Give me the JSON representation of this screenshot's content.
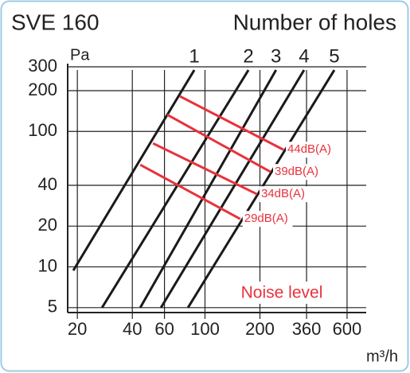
{
  "chart_data": {
    "type": "line",
    "title": "SVE 160",
    "subtitle": "Number of holes",
    "y_label": "Pa",
    "x_label": "m³/h",
    "annotation": "Noise level",
    "log_x": true,
    "log_y": true,
    "grid": true,
    "xlim": [
      17.7,
      764
    ],
    "ylim": [
      4.6,
      300
    ],
    "xticks": [
      20,
      40,
      60,
      100,
      200,
      360,
      600
    ],
    "yticks": [
      5,
      10,
      20,
      40,
      100,
      200,
      300
    ],
    "series": [
      {
        "name": "1",
        "color": "#1a1a1a",
        "x": [
          19.0,
          87.4
        ],
        "values": [
          9.4,
          284
        ]
      },
      {
        "name": "2",
        "color": "#1a1a1a",
        "x": [
          27.3,
          173
        ],
        "values": [
          5,
          284
        ]
      },
      {
        "name": "3",
        "color": "#1a1a1a",
        "x": [
          44.2,
          245
        ],
        "values": [
          5,
          284
        ]
      },
      {
        "name": "4",
        "color": "#1a1a1a",
        "x": [
          57.4,
          349
        ],
        "values": [
          5,
          284
        ]
      },
      {
        "name": "5",
        "color": "#1a1a1a",
        "x": [
          80.7,
          511
        ],
        "values": [
          5,
          284
        ]
      }
    ],
    "noise_lines": [
      {
        "name": "44dB(A)",
        "color": "#e8323c",
        "x": [
          73.0,
          269
        ],
        "values": [
          181.6,
          73.3
        ]
      },
      {
        "name": "39dB(A)",
        "color": "#e8323c",
        "x": [
          62.1,
          229
        ],
        "values": [
          133,
          50.2
        ]
      },
      {
        "name": "34dB(A)",
        "color": "#e8323c",
        "x": [
          51.9,
          193
        ],
        "values": [
          81.7,
          34.4
        ]
      },
      {
        "name": "29dB(A)",
        "color": "#e8323c",
        "x": [
          44.2,
          156
        ],
        "values": [
          56.7,
          22.6
        ]
      }
    ],
    "annotation_color": "#e8323c"
  }
}
